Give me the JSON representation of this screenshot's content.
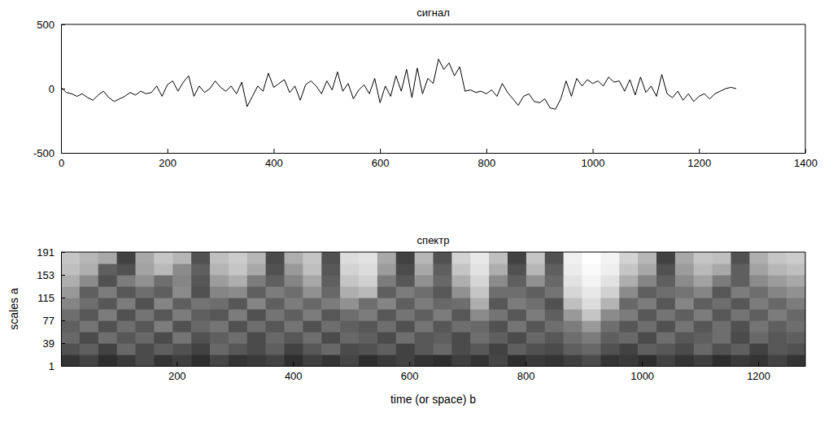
{
  "chart_data": [
    {
      "type": "line",
      "title": "сигнал",
      "x": [
        0,
        10,
        20,
        30,
        40,
        50,
        60,
        70,
        80,
        90,
        100,
        110,
        120,
        130,
        140,
        150,
        160,
        170,
        180,
        190,
        200,
        210,
        220,
        230,
        240,
        250,
        260,
        270,
        280,
        290,
        300,
        310,
        320,
        330,
        340,
        350,
        360,
        370,
        380,
        390,
        400,
        410,
        420,
        430,
        440,
        450,
        460,
        470,
        480,
        490,
        500,
        510,
        520,
        530,
        540,
        550,
        560,
        570,
        580,
        590,
        600,
        610,
        620,
        630,
        640,
        650,
        660,
        670,
        680,
        690,
        700,
        710,
        720,
        730,
        740,
        750,
        760,
        770,
        780,
        790,
        800,
        810,
        820,
        830,
        840,
        850,
        860,
        870,
        880,
        890,
        900,
        910,
        920,
        930,
        940,
        950,
        960,
        970,
        980,
        990,
        1000,
        1010,
        1020,
        1030,
        1040,
        1050,
        1060,
        1070,
        1080,
        1090,
        1100,
        1110,
        1120,
        1130,
        1140,
        1150,
        1160,
        1170,
        1180,
        1190,
        1200,
        1210,
        1220,
        1230,
        1240,
        1250,
        1260,
        1270
      ],
      "series": [
        {
          "color": "#000000",
          "values": [
            10,
            -30,
            -40,
            -60,
            -40,
            -70,
            -90,
            -50,
            -20,
            -70,
            -100,
            -80,
            -60,
            -30,
            -50,
            -20,
            -40,
            -30,
            20,
            -60,
            30,
            60,
            -20,
            50,
            100,
            -60,
            20,
            -30,
            0,
            60,
            10,
            -20,
            20,
            -40,
            50,
            -140,
            -60,
            20,
            -20,
            120,
            10,
            40,
            70,
            -30,
            20,
            -90,
            30,
            60,
            20,
            -40,
            60,
            -10,
            130,
            -20,
            40,
            -80,
            -10,
            30,
            -40,
            80,
            -110,
            20,
            -60,
            100,
            -20,
            150,
            -70,
            160,
            -40,
            80,
            40,
            230,
            150,
            200,
            100,
            170,
            -20,
            -10,
            -30,
            -20,
            -40,
            -10,
            -60,
            40,
            -30,
            -80,
            -130,
            -60,
            -40,
            -100,
            -110,
            -80,
            -150,
            -160,
            -80,
            60,
            -60,
            80,
            20,
            70,
            40,
            60,
            20,
            90,
            50,
            60,
            -20,
            70,
            -50,
            90,
            -30,
            20,
            -60,
            110,
            -40,
            -70,
            -20,
            -90,
            -40,
            -100,
            -60,
            -40,
            -80,
            -40,
            -20,
            0,
            10,
            0
          ]
        }
      ],
      "xlim": [
        0,
        1400
      ],
      "xticks": [
        0,
        200,
        400,
        600,
        800,
        1000,
        1200,
        1400
      ],
      "ylim": [
        -500,
        500
      ],
      "yticks": [
        -500,
        0,
        500
      ]
    },
    {
      "type": "heatmap",
      "title": "спектр",
      "x_label": "time (or space) b",
      "y_label": "scales a",
      "time_bins": [
        1,
        33,
        65,
        97,
        129,
        161,
        193,
        225,
        257,
        289,
        321,
        353,
        385,
        417,
        449,
        481,
        513,
        545,
        577,
        609,
        641,
        673,
        705,
        737,
        769,
        801,
        833,
        865,
        897,
        929,
        961,
        993,
        1025,
        1057,
        1089,
        1121,
        1153,
        1185,
        1217,
        1249,
        1281
      ],
      "scale_bins": [
        1,
        20,
        39,
        58,
        77,
        96,
        115,
        134,
        153,
        172,
        191
      ],
      "cells": [
        [
          30,
          35,
          28,
          32,
          38,
          30,
          34,
          28,
          36,
          30,
          32,
          35,
          28,
          34,
          30,
          36,
          28,
          32,
          35,
          30,
          28,
          34,
          30,
          36,
          28,
          32,
          30,
          34,
          38,
          30,
          32,
          28,
          35,
          30,
          34,
          28,
          32,
          30,
          35,
          30
        ],
        [
          40,
          45,
          35,
          48,
          38,
          45,
          40,
          35,
          48,
          42,
          38,
          45,
          35,
          42,
          48,
          38,
          40,
          45,
          35,
          42,
          48,
          38,
          42,
          35,
          45,
          40,
          38,
          45,
          48,
          40,
          35,
          45,
          42,
          38,
          48,
          40,
          45,
          35,
          42,
          40
        ],
        [
          48,
          38,
          50,
          42,
          48,
          38,
          52,
          40,
          45,
          50,
          38,
          48,
          42,
          50,
          38,
          48,
          45,
          38,
          50,
          42,
          45,
          38,
          50,
          45,
          38,
          48,
          42,
          50,
          55,
          45,
          48,
          38,
          50,
          42,
          45,
          50,
          38,
          48,
          42,
          45
        ],
        [
          45,
          52,
          40,
          50,
          42,
          55,
          40,
          48,
          52,
          40,
          50,
          42,
          52,
          40,
          50,
          45,
          42,
          50,
          40,
          52,
          42,
          50,
          48,
          40,
          52,
          42,
          50,
          55,
          65,
          50,
          42,
          50,
          40,
          52,
          42,
          50,
          40,
          52,
          45,
          50
        ],
        [
          50,
          42,
          55,
          40,
          52,
          42,
          55,
          45,
          42,
          55,
          40,
          52,
          45,
          55,
          42,
          50,
          55,
          42,
          52,
          45,
          55,
          42,
          60,
          52,
          42,
          55,
          45,
          65,
          80,
          60,
          55,
          42,
          52,
          45,
          55,
          42,
          52,
          45,
          55,
          48
        ],
        [
          58,
          50,
          42,
          55,
          40,
          58,
          45,
          52,
          50,
          42,
          58,
          45,
          55,
          48,
          55,
          62,
          50,
          58,
          45,
          55,
          48,
          50,
          72,
          42,
          55,
          50,
          40,
          78,
          88,
          74,
          48,
          55,
          42,
          58,
          45,
          50,
          42,
          55,
          48,
          55
        ],
        [
          65,
          45,
          55,
          42,
          50,
          45,
          60,
          40,
          58,
          60,
          45,
          55,
          50,
          62,
          48,
          72,
          76,
          45,
          55,
          50,
          42,
          62,
          80,
          50,
          50,
          45,
          52,
          86,
          92,
          84,
          60,
          45,
          50,
          52,
          58,
          42,
          55,
          50,
          58,
          62
        ],
        [
          72,
          60,
          40,
          55,
          62,
          50,
          58,
          42,
          66,
          72,
          55,
          45,
          58,
          70,
          45,
          80,
          84,
          55,
          42,
          62,
          48,
          72,
          86,
          60,
          45,
          62,
          48,
          90,
          96,
          90,
          72,
          58,
          45,
          60,
          68,
          55,
          45,
          60,
          66,
          70
        ],
        [
          78,
          72,
          45,
          40,
          68,
          76,
          60,
          45,
          74,
          80,
          70,
          40,
          65,
          78,
          42,
          85,
          88,
          66,
          38,
          70,
          45,
          80,
          90,
          72,
          40,
          75,
          45,
          93,
          98,
          94,
          80,
          70,
          40,
          66,
          76,
          70,
          45,
          68,
          75,
          78
        ],
        [
          80,
          75,
          70,
          35,
          70,
          80,
          75,
          40,
          78,
          82,
          75,
          38,
          72,
          80,
          40,
          88,
          90,
          70,
          35,
          75,
          40,
          85,
          92,
          78,
          35,
          80,
          40,
          95,
          100,
          96,
          85,
          75,
          35,
          70,
          80,
          78,
          40,
          72,
          80,
          82
        ]
      ],
      "xlim": [
        1,
        1281
      ],
      "xticks": [
        200,
        400,
        600,
        800,
        1000,
        1200
      ],
      "ylim": [
        1,
        191
      ],
      "yticks": [
        1,
        39,
        77,
        115,
        153,
        191
      ]
    }
  ]
}
